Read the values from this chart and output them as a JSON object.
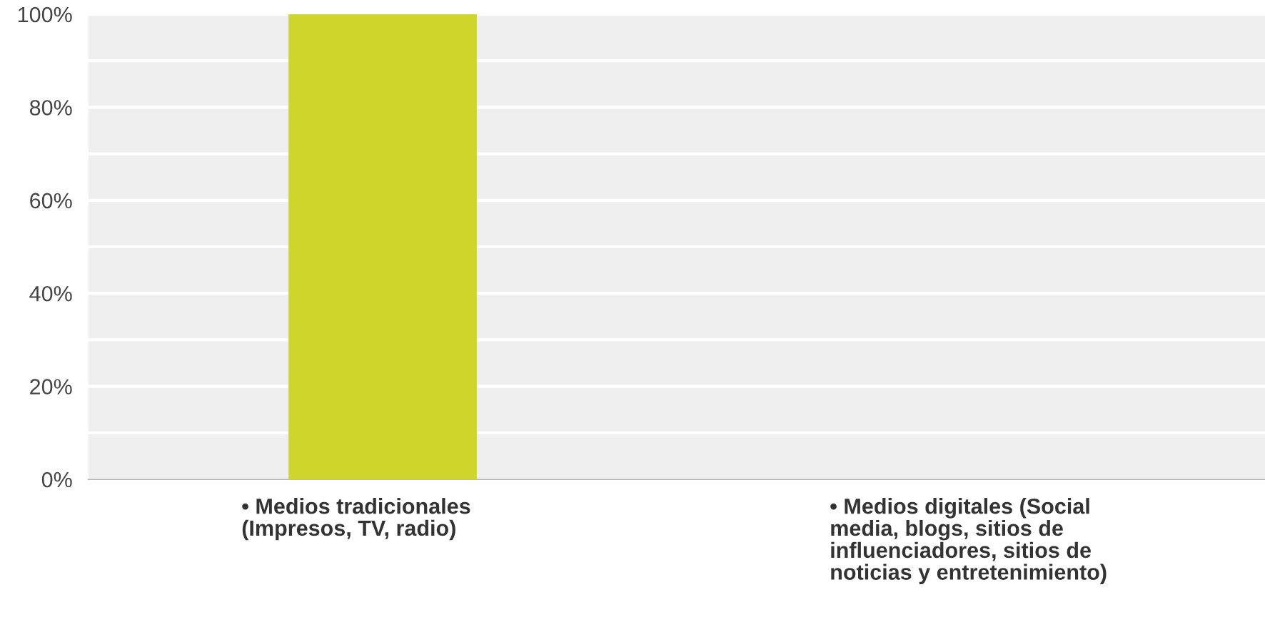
{
  "chart_data": {
    "type": "bar",
    "categories": [
      "• Medios tradicionales\n(Impresos, TV, radio)",
      "• Medios digitales (Social\nmedia, blogs, sitios de\ninfluenciadores, sitios de\nnoticias y entretenimiento)"
    ],
    "values": [
      100,
      0
    ],
    "color": "#cfd52a",
    "ylim": [
      0,
      100
    ],
    "yticks": [
      {
        "value": 0,
        "label": "0%"
      },
      {
        "value": 10,
        "label": null
      },
      {
        "value": 20,
        "label": "20%"
      },
      {
        "value": 30,
        "label": null
      },
      {
        "value": 40,
        "label": "40%"
      },
      {
        "value": 50,
        "label": null
      },
      {
        "value": 60,
        "label": "60%"
      },
      {
        "value": 70,
        "label": null
      },
      {
        "value": 80,
        "label": "80%"
      },
      {
        "value": 90,
        "label": null
      },
      {
        "value": 100,
        "label": "100%"
      }
    ],
    "grid": "y"
  }
}
